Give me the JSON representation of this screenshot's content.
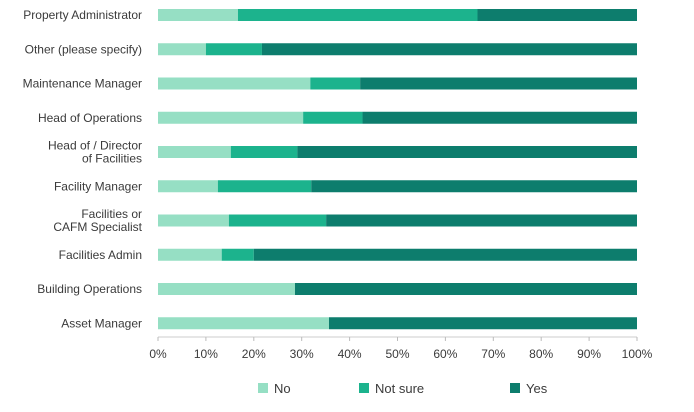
{
  "chart_data": {
    "type": "bar",
    "orientation": "horizontal",
    "stacked": "percent",
    "categories": [
      "Property Administrator",
      "Other (please specify)",
      "Maintenance Manager",
      "Head of Operations",
      "Head of / Director of Facilities",
      "Facility Manager",
      "Facilities or CAFM Specialist",
      "Facilities Admin",
      "Building Operations",
      "Asset Manager"
    ],
    "category_lines": [
      [
        "Property Administrator"
      ],
      [
        "Other (please specify)"
      ],
      [
        "Maintenance Manager"
      ],
      [
        "Head of Operations"
      ],
      [
        "Head of / Director",
        "of Facilities"
      ],
      [
        "Facility Manager"
      ],
      [
        "Facilities or",
        "CAFM Specialist"
      ],
      [
        "Facilities Admin"
      ],
      [
        "Building Operations"
      ],
      [
        "Asset Manager"
      ]
    ],
    "series": [
      {
        "name": "No",
        "color": "#96dfc4",
        "values": [
          16.7,
          10.0,
          31.8,
          30.3,
          15.2,
          12.5,
          14.8,
          13.3,
          28.6,
          35.7
        ]
      },
      {
        "name": "Not sure",
        "color": "#1cb38d",
        "values": [
          50.0,
          11.7,
          10.4,
          12.4,
          13.9,
          19.5,
          20.3,
          6.7,
          0,
          0
        ]
      },
      {
        "name": "Yes",
        "color": "#0d7d6d",
        "values": [
          33.3,
          78.3,
          57.8,
          57.3,
          70.9,
          68.0,
          64.9,
          80.0,
          71.4,
          64.3
        ]
      }
    ],
    "x_ticks": [
      "0%",
      "10%",
      "20%",
      "30%",
      "40%",
      "50%",
      "60%",
      "70%",
      "80%",
      "90%",
      "100%"
    ],
    "xlim": [
      0,
      100
    ],
    "legend_position": "bottom",
    "grid": false
  }
}
